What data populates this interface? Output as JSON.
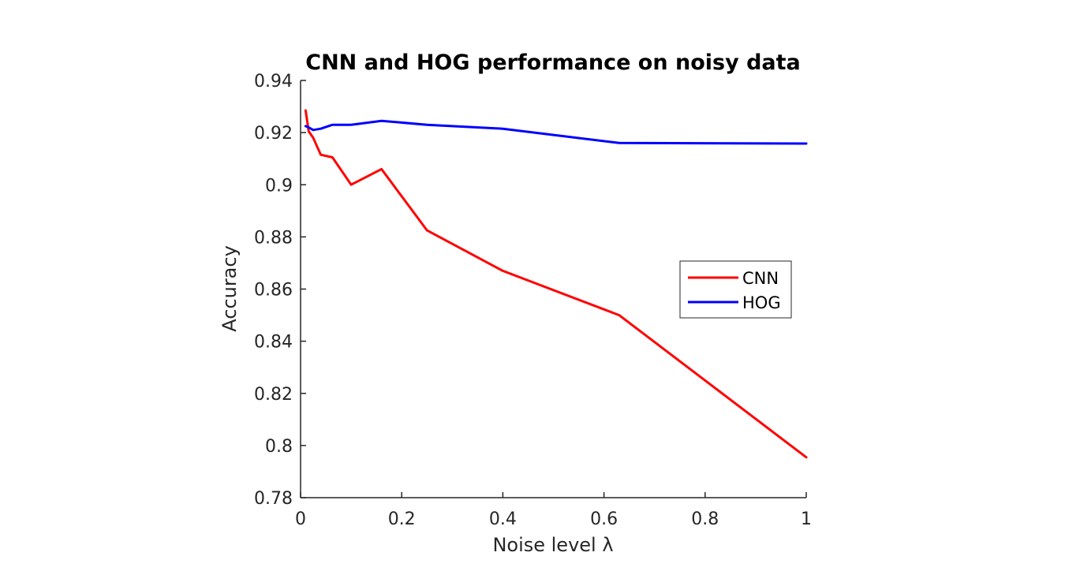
{
  "chart_data": {
    "type": "line",
    "title": "CNN and HOG performance on noisy data",
    "xlabel": "Noise level λ",
    "ylabel": "Accuracy",
    "xlim": [
      0,
      1
    ],
    "ylim": [
      0.78,
      0.94
    ],
    "xticks": [
      0,
      0.2,
      0.4,
      0.6,
      0.8,
      1
    ],
    "xtick_labels": [
      "0",
      "0.2",
      "0.4",
      "0.6",
      "0.8",
      "1"
    ],
    "yticks": [
      0.78,
      0.8,
      0.82,
      0.84,
      0.86,
      0.88,
      0.9,
      0.92,
      0.94
    ],
    "ytick_labels": [
      "0.78",
      "0.8",
      "0.82",
      "0.84",
      "0.86",
      "0.88",
      "0.9",
      "0.92",
      "0.94"
    ],
    "grid": false,
    "legend": "center-right",
    "series": [
      {
        "name": "CNN",
        "color": "#ff0000",
        "x": [
          0.01,
          0.016,
          0.025,
          0.04,
          0.063,
          0.1,
          0.16,
          0.25,
          0.4,
          0.63,
          1.0
        ],
        "y": [
          0.9285,
          0.9205,
          0.918,
          0.9115,
          0.9105,
          0.9,
          0.906,
          0.8825,
          0.867,
          0.85,
          0.7955
        ]
      },
      {
        "name": "HOG",
        "color": "#0000ff",
        "x": [
          0.01,
          0.016,
          0.025,
          0.04,
          0.063,
          0.1,
          0.16,
          0.25,
          0.4,
          0.63,
          1.0
        ],
        "y": [
          0.9225,
          0.922,
          0.921,
          0.9215,
          0.923,
          0.923,
          0.9245,
          0.923,
          0.9215,
          0.916,
          0.9158
        ]
      }
    ]
  }
}
